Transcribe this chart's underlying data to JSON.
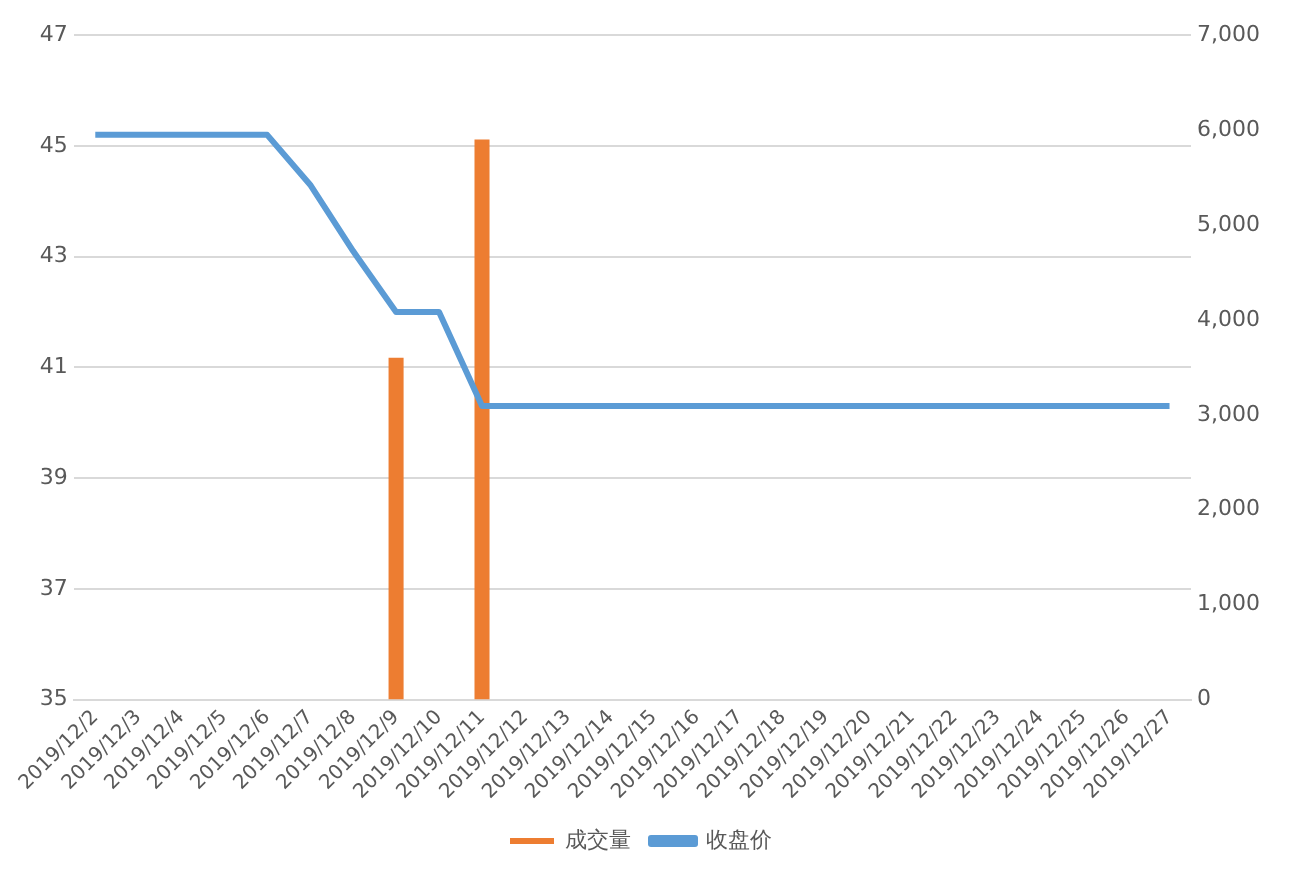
{
  "chart_data": {
    "type": "bar",
    "categories": [
      "2019/12/2",
      "2019/12/3",
      "2019/12/4",
      "2019/12/5",
      "2019/12/6",
      "2019/12/7",
      "2019/12/8",
      "2019/12/9",
      "2019/12/10",
      "2019/12/11",
      "2019/12/12",
      "2019/12/13",
      "2019/12/14",
      "2019/12/15",
      "2019/12/16",
      "2019/12/17",
      "2019/12/18",
      "2019/12/19",
      "2019/12/20",
      "2019/12/21",
      "2019/12/22",
      "2019/12/23",
      "2019/12/24",
      "2019/12/25",
      "2019/12/26",
      "2019/12/27"
    ],
    "series": [
      {
        "name": "成交量",
        "axis": "y2",
        "color": "#ed7d31",
        "values": [
          null,
          null,
          null,
          null,
          null,
          null,
          null,
          3600,
          null,
          5900,
          null,
          null,
          null,
          null,
          null,
          null,
          null,
          null,
          null,
          null,
          null,
          null,
          null,
          null,
          null,
          null
        ]
      },
      {
        "name": "收盘价",
        "type": "line",
        "color": "#5b9bd5",
        "values": [
          45.2,
          45.2,
          45.2,
          45.2,
          45.2,
          44.3,
          43.1,
          42.0,
          42.0,
          40.3,
          40.3,
          40.3,
          40.3,
          40.3,
          40.3,
          40.3,
          40.3,
          40.3,
          40.3,
          40.3,
          40.3,
          40.3,
          40.3,
          40.3,
          40.3,
          40.3
        ]
      }
    ],
    "ylim": [
      35,
      47
    ],
    "yticks": [
      35,
      37,
      39,
      41,
      43,
      45,
      47
    ],
    "y2lim": [
      0,
      7000
    ],
    "y2ticks": [
      {
        "value": 0,
        "label": "0"
      },
      {
        "value": 1000,
        "label": "1,000"
      },
      {
        "value": 2000,
        "label": "2,000"
      },
      {
        "value": 3000,
        "label": "3,000"
      },
      {
        "value": 4000,
        "label": "4,000"
      },
      {
        "value": 5000,
        "label": "5,000"
      },
      {
        "value": 6000,
        "label": "6,000"
      },
      {
        "value": 7000,
        "label": "7,000"
      }
    ],
    "grid": "y",
    "legend": "bottom",
    "marker": "none",
    "line_style": "solid"
  }
}
